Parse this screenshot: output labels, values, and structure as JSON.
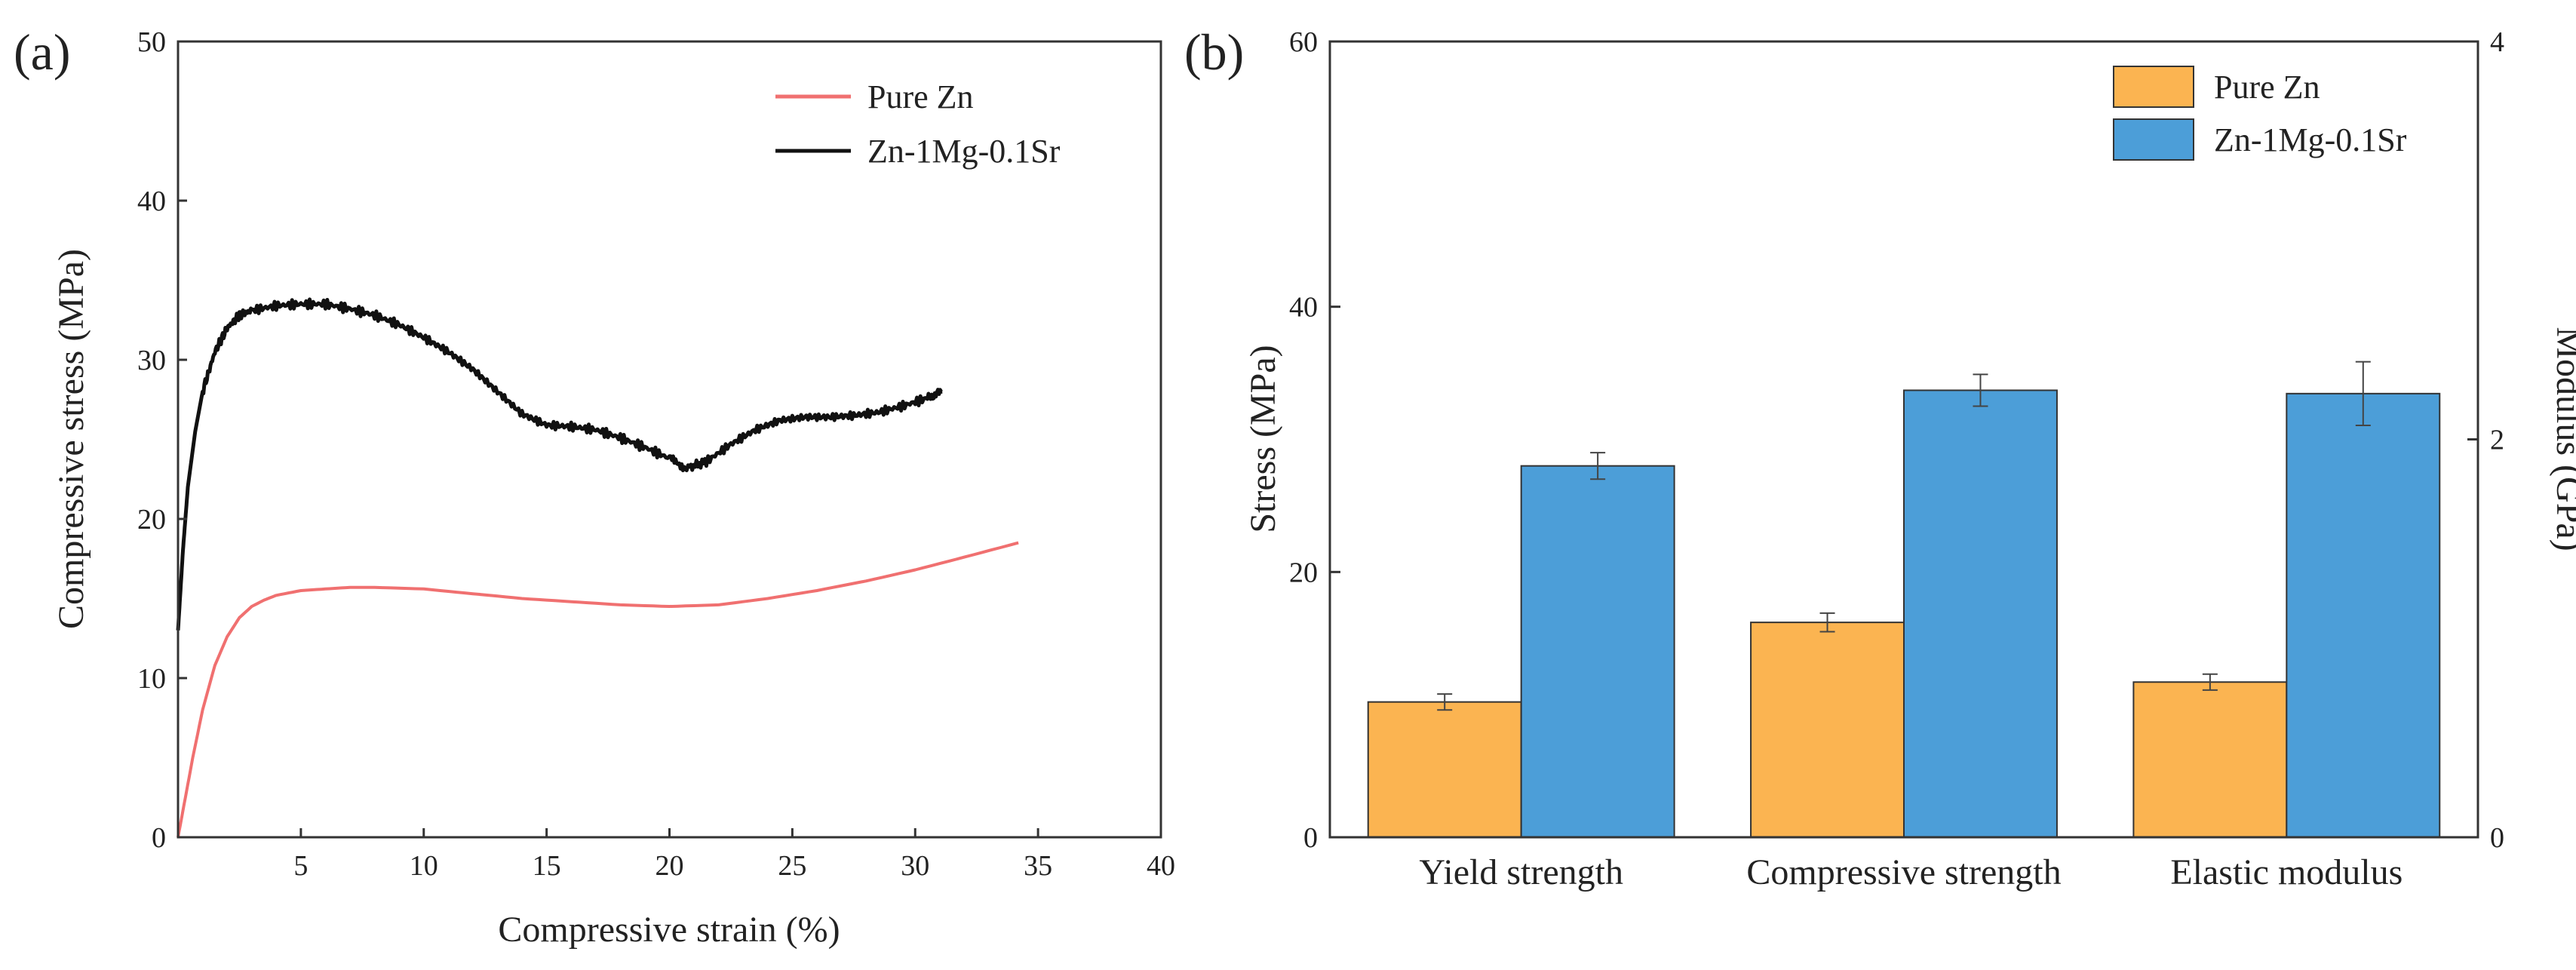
{
  "chart_data": [
    {
      "type": "line",
      "panel_label": "(a)",
      "title": "",
      "xlabel": "Compressive strain (%)",
      "ylabel": "Compressive stress (MPa)",
      "xlim": [
        0,
        40
      ],
      "ylim": [
        0,
        50
      ],
      "xticks": [
        "5",
        "10",
        "15",
        "20",
        "25",
        "30",
        "35",
        "40"
      ],
      "yticks": [
        "0",
        "10",
        "20",
        "30",
        "40",
        "50"
      ],
      "legend_position": "top-right",
      "series": [
        {
          "name": "Pure Zn",
          "color": "#f07070",
          "x": [
            0,
            0.3,
            0.6,
            1.0,
            1.5,
            2.0,
            2.5,
            3.0,
            3.5,
            4.0,
            5.0,
            6.0,
            7.0,
            8.0,
            10.0,
            12.0,
            14.0,
            16.0,
            18.0,
            20.0,
            22.0,
            24.0,
            26.0,
            28.0,
            30.0,
            32.0,
            34.2
          ],
          "y": [
            0,
            2.5,
            5.0,
            8.0,
            10.8,
            12.6,
            13.8,
            14.5,
            14.9,
            15.2,
            15.5,
            15.6,
            15.7,
            15.7,
            15.6,
            15.3,
            15.0,
            14.8,
            14.6,
            14.5,
            14.6,
            15.0,
            15.5,
            16.1,
            16.8,
            17.6,
            18.5
          ]
        },
        {
          "name": "Zn-1Mg-0.1Sr",
          "color": "#111111",
          "x": [
            0,
            0.2,
            0.4,
            0.7,
            1.0,
            1.5,
            2.0,
            2.5,
            3.0,
            4.0,
            5.0,
            6.0,
            7.0,
            8.0,
            9.0,
            10.0,
            11.0,
            12.0,
            13.0,
            14.0,
            15.0,
            16.0,
            17.0,
            18.0,
            19.0,
            20.0,
            20.7,
            21.5,
            22.5,
            23.5,
            24.5,
            25.5,
            26.5,
            27.5,
            28.5,
            29.5,
            30.5,
            31.1
          ],
          "y": [
            13,
            18,
            22,
            25.5,
            28,
            30.5,
            32.0,
            32.8,
            33.1,
            33.4,
            33.5,
            33.5,
            33.2,
            32.8,
            32.2,
            31.4,
            30.5,
            29.4,
            28.0,
            26.6,
            25.9,
            25.8,
            25.6,
            25.1,
            24.5,
            23.8,
            23.2,
            23.6,
            24.7,
            25.6,
            26.2,
            26.4,
            26.4,
            26.5,
            26.7,
            27.1,
            27.6,
            28.0
          ]
        }
      ]
    },
    {
      "type": "bar",
      "panel_label": "(b)",
      "title": "",
      "xlabel": "",
      "ylabel": "Stress (MPa)",
      "y2label": "Modulus (GPa)",
      "ylim": [
        0,
        60
      ],
      "y2lim": [
        0,
        4
      ],
      "yticks": [
        "0",
        "20",
        "40",
        "60"
      ],
      "y2ticks": [
        "0",
        "2",
        "4"
      ],
      "categories": [
        "Yield strength",
        "Compressive strength",
        "Elastic modulus"
      ],
      "legend_position": "top-right",
      "series": [
        {
          "name": "Pure Zn",
          "color": "#fbb451",
          "values": [
            10.2,
            16.2,
            0.78
          ],
          "errors": [
            0.6,
            0.7,
            0.04
          ],
          "axes": [
            "left",
            "left",
            "right"
          ]
        },
        {
          "name": "Zn-1Mg-0.1Sr",
          "color": "#4c9ed8",
          "values": [
            28.0,
            33.7,
            2.23
          ],
          "errors": [
            1.0,
            1.2,
            0.16
          ],
          "axes": [
            "left",
            "left",
            "right"
          ]
        }
      ]
    }
  ]
}
